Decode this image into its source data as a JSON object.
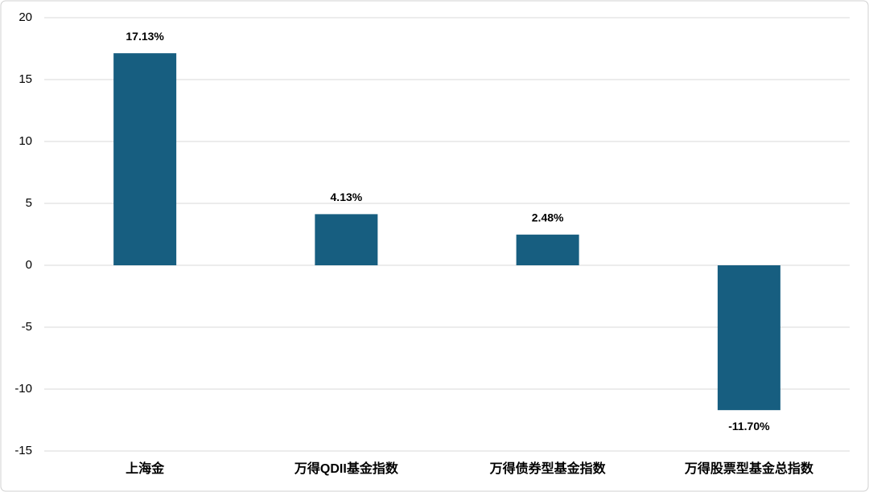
{
  "chart_data": {
    "type": "bar",
    "categories": [
      "上海金",
      "万得QDII基金指数",
      "万得债券型基金指数",
      "万得股票型基金总指数"
    ],
    "values": [
      17.13,
      4.13,
      2.48,
      -11.7
    ],
    "value_labels": [
      "17.13%",
      "4.13%",
      "2.48%",
      "-11.70%"
    ],
    "color": "#175e80",
    "ylim": [
      -15,
      20
    ],
    "yticks": [
      -15,
      -10,
      -5,
      0,
      5,
      10,
      15,
      20
    ],
    "grid": true
  }
}
